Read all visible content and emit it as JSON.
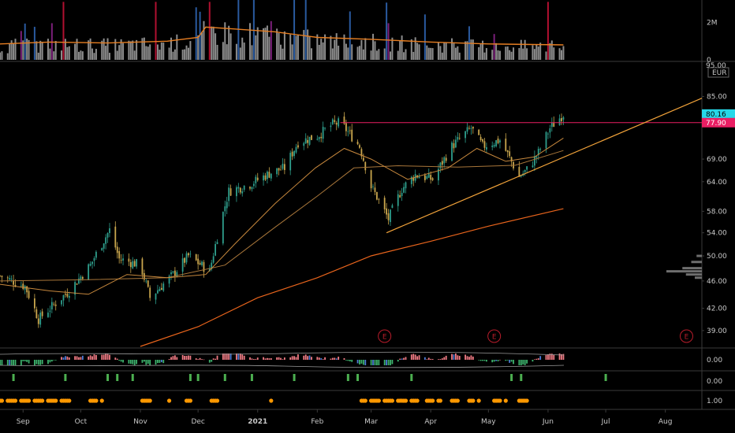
{
  "colors": {
    "background": "#000000",
    "separator": "#3a3a3a",
    "candle_up": "#2e9e8c",
    "candle_down": "#c9a64d",
    "resistance_line": "#e91e63",
    "trendline": "#f2a33a",
    "ma_fast": "#c7883d",
    "ma_slow": "#e8641c",
    "last_price_tag": "#26d7e8",
    "resistance_tag": "#e91e63",
    "volume_ma": "#e67e22",
    "volume_gray": "#8c8c8c",
    "volume_blue": "#2a5a9f",
    "volume_purple": "#7b1f7a",
    "volume_red": "#b01030",
    "hist_pos": "#f07b84",
    "hist_neg": "#3db36d",
    "hist_blue": "#4d7bd6",
    "event_color": "#b81d2b",
    "signal_green": "#4caf50",
    "dots_orange": "#ff9800",
    "axis_text": "#c8c8c8"
  },
  "price_axis": {
    "ticks": [
      "85.00",
      "69.00",
      "64.00",
      "58.00",
      "54.00",
      "50.00",
      "46.00",
      "42.00",
      "39.00"
    ],
    "top_partial_label": "95.00",
    "currency": "EUR"
  },
  "volume_axis": {
    "ticks": [
      "2M",
      "0"
    ]
  },
  "osc_axis": {
    "ticks": [
      "0.00",
      "0.00",
      "1.00"
    ]
  },
  "tags": {
    "last_price": "80.16",
    "resistance": "77.90"
  },
  "x_axis": {
    "ticks": [
      "Sep",
      "Oct",
      "Nov",
      "Dec",
      "2021",
      "Feb",
      "Mar",
      "Apr",
      "May",
      "Jun",
      "Jul",
      "Aug"
    ]
  },
  "events": {
    "label": "E",
    "count": 3
  },
  "chart_data": {
    "type": "candlestick",
    "y_scale": "log",
    "ylim": [
      37,
      95
    ],
    "x_range": [
      "2020-08-20",
      "2021-08-20"
    ],
    "price_path": [
      [
        "2020-08-20",
        46.8
      ],
      [
        "2020-09-02",
        45.2
      ],
      [
        "2020-09-09",
        40.5
      ],
      [
        "2020-09-17",
        42.5
      ],
      [
        "2020-09-25",
        44.5
      ],
      [
        "2020-10-06",
        48.5
      ],
      [
        "2020-10-16",
        54.5
      ],
      [
        "2020-10-21",
        49.5
      ],
      [
        "2020-11-01",
        48.5
      ],
      [
        "2020-11-06",
        43.5
      ],
      [
        "2020-11-18",
        47.0
      ],
      [
        "2020-11-26",
        50.0
      ],
      [
        "2020-12-07",
        47.5
      ],
      [
        "2020-12-17",
        62.0
      ],
      [
        "2020-12-28",
        63.5
      ],
      [
        "2021-01-08",
        66.0
      ],
      [
        "2021-01-15",
        67.0
      ],
      [
        "2021-01-22",
        73.0
      ],
      [
        "2021-02-01",
        74.5
      ],
      [
        "2021-02-09",
        77.5
      ],
      [
        "2021-02-13",
        77.9
      ],
      [
        "2021-02-23",
        72.0
      ],
      [
        "2021-03-01",
        63.0
      ],
      [
        "2021-03-10",
        56.5
      ],
      [
        "2021-03-17",
        62.5
      ],
      [
        "2021-03-24",
        65.5
      ],
      [
        "2021-04-02",
        64.5
      ],
      [
        "2021-04-12",
        72.0
      ],
      [
        "2021-04-22",
        76.5
      ],
      [
        "2021-04-28",
        72.0
      ],
      [
        "2021-05-07",
        73.5
      ],
      [
        "2021-05-17",
        65.0
      ],
      [
        "2021-05-22",
        67.0
      ],
      [
        "2021-05-27",
        70.5
      ],
      [
        "2021-06-02",
        76.5
      ],
      [
        "2021-06-09",
        80.16
      ]
    ],
    "resistance": {
      "price": 77.9,
      "from": "2021-02-13",
      "to": "2021-08-20"
    },
    "trendline": {
      "from": [
        "2021-03-09",
        54.0
      ],
      "to": [
        "2021-08-20",
        84.5
      ]
    },
    "ma_fast": [
      [
        "2020-08-20",
        45.5
      ],
      [
        "2020-09-15",
        44.5
      ],
      [
        "2020-10-05",
        44.0
      ],
      [
        "2020-10-25",
        47.0
      ],
      [
        "2020-11-15",
        46.5
      ],
      [
        "2020-12-05",
        47.0
      ],
      [
        "2020-12-20",
        52.0
      ],
      [
        "2021-01-10",
        59.5
      ],
      [
        "2021-01-31",
        67.0
      ],
      [
        "2021-02-15",
        71.5
      ],
      [
        "2021-03-01",
        69.0
      ],
      [
        "2021-03-20",
        64.5
      ],
      [
        "2021-04-10",
        67.0
      ],
      [
        "2021-04-25",
        71.5
      ],
      [
        "2021-05-10",
        68.5
      ],
      [
        "2021-05-25",
        69.5
      ],
      [
        "2021-06-09",
        74.0
      ]
    ],
    "ma_mid": [
      [
        "2020-08-20",
        46.0
      ],
      [
        "2020-10-05",
        46.2
      ],
      [
        "2020-11-15",
        46.5
      ],
      [
        "2020-12-15",
        48.5
      ],
      [
        "2021-01-10",
        55.0
      ],
      [
        "2021-02-01",
        61.0
      ],
      [
        "2021-02-20",
        67.0
      ],
      [
        "2021-03-15",
        67.5
      ],
      [
        "2021-04-15",
        67.2
      ],
      [
        "2021-05-15",
        67.6
      ],
      [
        "2021-06-09",
        71.0
      ]
    ],
    "ma_slow": [
      [
        "2020-11-01",
        37.0
      ],
      [
        "2020-12-01",
        39.5
      ],
      [
        "2021-01-01",
        43.5
      ],
      [
        "2021-02-01",
        46.5
      ],
      [
        "2021-03-01",
        50.0
      ],
      [
        "2021-04-01",
        52.5
      ],
      [
        "2021-05-01",
        55.2
      ],
      [
        "2021-06-09",
        58.5
      ]
    ],
    "volume_ma": [
      [
        "2020-08-20",
        0.85
      ],
      [
        "2020-09-15",
        0.95
      ],
      [
        "2020-10-15",
        0.9
      ],
      [
        "2020-11-15",
        1.0
      ],
      [
        "2020-12-01",
        1.2
      ],
      [
        "2020-12-05",
        1.75
      ],
      [
        "2020-12-20",
        1.65
      ],
      [
        "2021-01-10",
        1.5
      ],
      [
        "2021-02-01",
        1.2
      ],
      [
        "2021-03-01",
        1.1
      ],
      [
        "2021-04-01",
        0.95
      ],
      [
        "2021-05-01",
        0.85
      ],
      [
        "2021-06-09",
        0.8
      ]
    ],
    "volume_ylim": [
      0,
      3.2
    ],
    "event_dates": [
      "2021-03-08",
      "2021-05-04",
      "2021-08-12"
    ],
    "volume_profile": [
      {
        "price": 50.0,
        "size": 0.15
      },
      {
        "price": 49.0,
        "size": 0.3
      },
      {
        "price": 48.0,
        "size": 0.55
      },
      {
        "price": 47.5,
        "size": 1.0
      },
      {
        "price": 47.0,
        "size": 0.45
      },
      {
        "price": 46.5,
        "size": 0.2
      }
    ]
  }
}
